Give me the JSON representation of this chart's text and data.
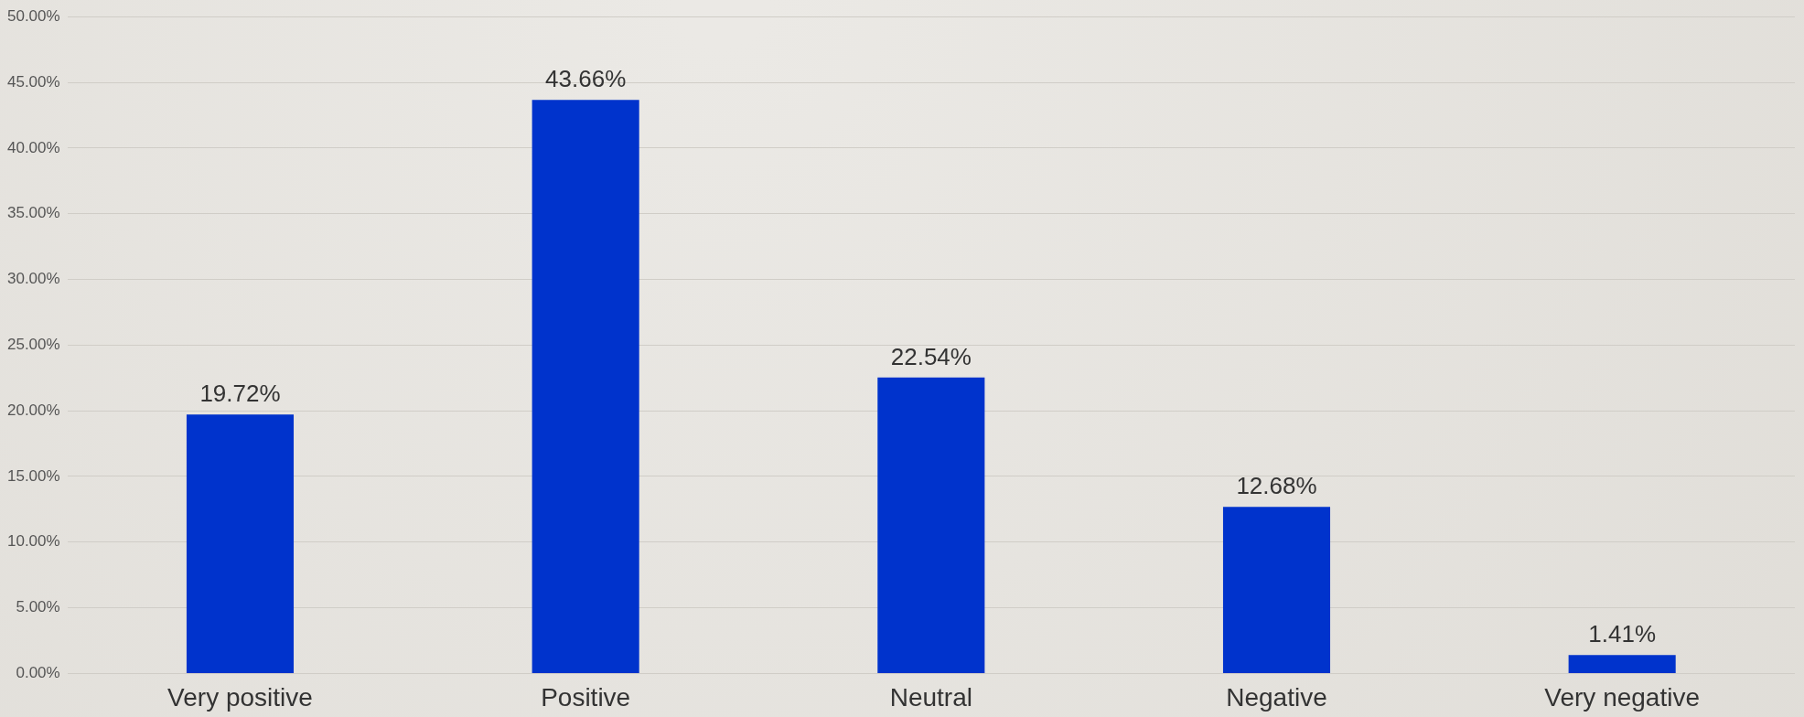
{
  "chart_data": {
    "type": "bar",
    "categories": [
      "Very positive",
      "Positive",
      "Neutral",
      "Negative",
      "Very negative"
    ],
    "values": [
      19.72,
      43.66,
      22.54,
      12.68,
      1.41
    ],
    "value_labels": [
      "19.72%",
      "43.66%",
      "22.54%",
      "12.68%",
      "1.41%"
    ],
    "color": "#0033cc",
    "ylim": [
      0,
      50
    ],
    "yticks": [
      {
        "value": 0,
        "label": "0.00%"
      },
      {
        "value": 5,
        "label": "5.00%"
      },
      {
        "value": 10,
        "label": "10.00%"
      },
      {
        "value": 15,
        "label": "15.00%"
      },
      {
        "value": 20,
        "label": "20.00%"
      },
      {
        "value": 25,
        "label": "25.00%"
      },
      {
        "value": 30,
        "label": "30.00%"
      },
      {
        "value": 35,
        "label": "35.00%"
      },
      {
        "value": 40,
        "label": "40.00%"
      },
      {
        "value": 45,
        "label": "45.00%"
      },
      {
        "value": 50,
        "label": "50.00%"
      }
    ],
    "grid": "y"
  }
}
